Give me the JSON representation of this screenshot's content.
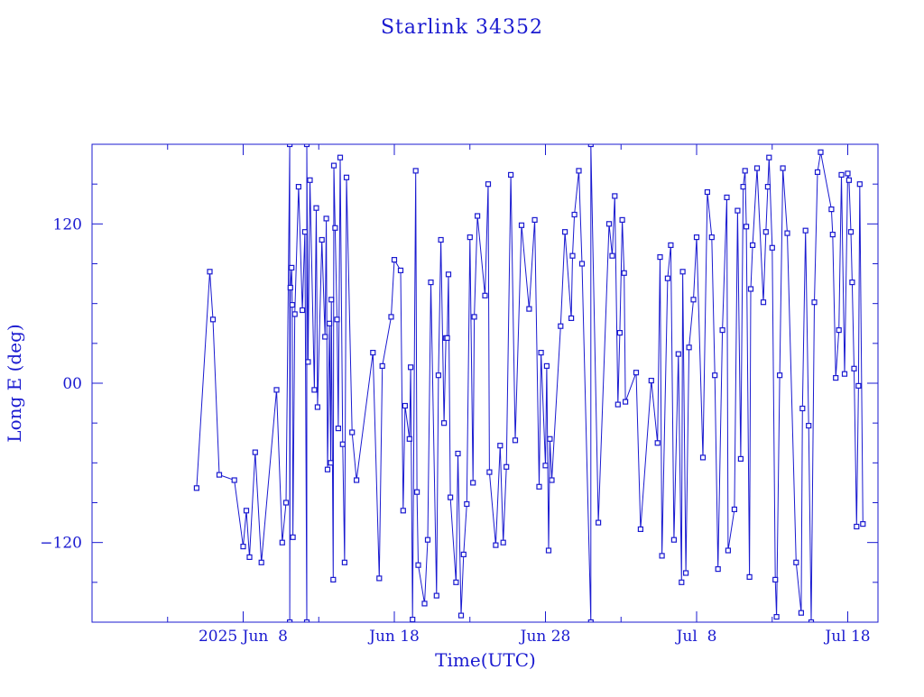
{
  "chart_data": {
    "type": "line",
    "title": "Starlink 34352",
    "xlabel": "Time(UTC)",
    "ylabel": "Long E (deg)",
    "xlim": [
      "2025-05-29T00:00",
      "2025-07-20T00:00"
    ],
    "ylim": [
      -180,
      180
    ],
    "x_tick_labels": [
      {
        "date": "2025-06-08T00:00",
        "label": "2025 Jun  8"
      },
      {
        "date": "2025-06-18T00:00",
        "label": "Jun 18"
      },
      {
        "date": "2025-06-28T00:00",
        "label": "Jun 28"
      },
      {
        "date": "2025-07-08T00:00",
        "label": "Jul  8"
      },
      {
        "date": "2025-07-18T00:00",
        "label": "Jul 18"
      }
    ],
    "y_tick_labels": [
      {
        "value": 120,
        "label": "120"
      },
      {
        "value": 0,
        "label": "00"
      },
      {
        "value": -120,
        "label": "−120"
      }
    ],
    "grid": false,
    "series": [
      {
        "color": "#1a1ad0",
        "marker": "square",
        "points": [
          [
            "2025-06-04T22:00",
            -79
          ],
          [
            "2025-06-05T19:00",
            84
          ],
          [
            "2025-06-06T00:00",
            48
          ],
          [
            "2025-06-06T10:00",
            -69
          ],
          [
            "2025-06-07T10:00",
            -73
          ],
          [
            "2025-06-08T00:00",
            -123
          ],
          [
            "2025-06-08T05:00",
            -96
          ],
          [
            "2025-06-08T10:00",
            -131
          ],
          [
            "2025-06-08T19:00",
            -52
          ],
          [
            "2025-06-09T05:00",
            -135
          ],
          [
            "2025-06-10T05:00",
            -5
          ],
          [
            "2025-06-10T14:00",
            -120
          ],
          [
            "2025-06-10T20:00",
            -90
          ],
          [
            "2025-06-11T02:00",
            180
          ],
          [
            "2025-06-11T02:00",
            -180
          ],
          [
            "2025-06-11T03:00",
            72
          ],
          [
            "2025-06-11T05:00",
            87
          ],
          [
            "2025-06-11T06:00",
            59
          ],
          [
            "2025-06-11T07:00",
            -116
          ],
          [
            "2025-06-11T10:00",
            52
          ],
          [
            "2025-06-11T16:00",
            148
          ],
          [
            "2025-06-11T22:00",
            55
          ],
          [
            "2025-06-12T02:00",
            114
          ],
          [
            "2025-06-12T05:00",
            -180
          ],
          [
            "2025-06-12T05:00",
            180
          ],
          [
            "2025-06-12T07:00",
            16
          ],
          [
            "2025-06-12T10:00",
            153
          ],
          [
            "2025-06-12T17:00",
            -5
          ],
          [
            "2025-06-12T20:00",
            132
          ],
          [
            "2025-06-12T22:00",
            -18
          ],
          [
            "2025-06-13T05:00",
            108
          ],
          [
            "2025-06-13T10:00",
            35
          ],
          [
            "2025-06-13T12:00",
            124
          ],
          [
            "2025-06-13T14:00",
            -65
          ],
          [
            "2025-06-13T17:00",
            45
          ],
          [
            "2025-06-13T19:00",
            -60
          ],
          [
            "2025-06-13T20:00",
            63
          ],
          [
            "2025-06-13T23:00",
            -148
          ],
          [
            "2025-06-14T00:00",
            164
          ],
          [
            "2025-06-14T02:00",
            117
          ],
          [
            "2025-06-14T05:00",
            48
          ],
          [
            "2025-06-14T07:00",
            -34
          ],
          [
            "2025-06-14T10:00",
            170
          ],
          [
            "2025-06-14T14:00",
            -46
          ],
          [
            "2025-06-14T17:00",
            -135
          ],
          [
            "2025-06-14T20:00",
            155
          ],
          [
            "2025-06-15T05:00",
            -37
          ],
          [
            "2025-06-15T12:00",
            -73
          ],
          [
            "2025-06-16T14:00",
            23
          ],
          [
            "2025-06-17T00:00",
            -147
          ],
          [
            "2025-06-17T05:00",
            13
          ],
          [
            "2025-06-17T19:00",
            50
          ],
          [
            "2025-06-18T00:00",
            93
          ],
          [
            "2025-06-18T10:00",
            85
          ],
          [
            "2025-06-18T14:00",
            -96
          ],
          [
            "2025-06-18T17:00",
            -17
          ],
          [
            "2025-06-19T00:00",
            -42
          ],
          [
            "2025-06-19T02:00",
            12
          ],
          [
            "2025-06-19T05:00",
            -178
          ],
          [
            "2025-06-19T10:00",
            160
          ],
          [
            "2025-06-19T12:00",
            -82
          ],
          [
            "2025-06-19T14:00",
            -137
          ],
          [
            "2025-06-20T00:00",
            -166
          ],
          [
            "2025-06-20T05:00",
            -118
          ],
          [
            "2025-06-20T10:00",
            76
          ],
          [
            "2025-06-20T19:00",
            -160
          ],
          [
            "2025-06-20T22:00",
            6
          ],
          [
            "2025-06-21T02:00",
            108
          ],
          [
            "2025-06-21T07:00",
            -30
          ],
          [
            "2025-06-21T10:00",
            34
          ],
          [
            "2025-06-21T12:00",
            34
          ],
          [
            "2025-06-21T14:00",
            82
          ],
          [
            "2025-06-21T17:00",
            -86
          ],
          [
            "2025-06-22T02:00",
            -150
          ],
          [
            "2025-06-22T05:00",
            -53
          ],
          [
            "2025-06-22T10:00",
            -175
          ],
          [
            "2025-06-22T14:00",
            -129
          ],
          [
            "2025-06-22T19:00",
            -91
          ],
          [
            "2025-06-23T00:00",
            110
          ],
          [
            "2025-06-23T05:00",
            -75
          ],
          [
            "2025-06-23T07:00",
            50
          ],
          [
            "2025-06-23T12:00",
            126
          ],
          [
            "2025-06-24T00:00",
            66
          ],
          [
            "2025-06-24T05:00",
            150
          ],
          [
            "2025-06-24T07:00",
            -67
          ],
          [
            "2025-06-24T17:00",
            -122
          ],
          [
            "2025-06-25T00:00",
            -47
          ],
          [
            "2025-06-25T05:00",
            -120
          ],
          [
            "2025-06-25T10:00",
            -63
          ],
          [
            "2025-06-25T17:00",
            157
          ],
          [
            "2025-06-26T00:00",
            -43
          ],
          [
            "2025-06-26T10:00",
            119
          ],
          [
            "2025-06-26T22:00",
            56
          ],
          [
            "2025-06-27T07:00",
            123
          ],
          [
            "2025-06-27T14:00",
            -78
          ],
          [
            "2025-06-27T17:00",
            23
          ],
          [
            "2025-06-28T00:00",
            -62
          ],
          [
            "2025-06-28T02:00",
            13
          ],
          [
            "2025-06-28T05:00",
            -126
          ],
          [
            "2025-06-28T07:00",
            -42
          ],
          [
            "2025-06-28T10:00",
            -73
          ],
          [
            "2025-06-29T00:00",
            43
          ],
          [
            "2025-06-29T07:00",
            114
          ],
          [
            "2025-06-29T17:00",
            49
          ],
          [
            "2025-06-29T19:00",
            96
          ],
          [
            "2025-06-29T22:00",
            127
          ],
          [
            "2025-06-30T05:00",
            160
          ],
          [
            "2025-06-30T10:00",
            90
          ],
          [
            "2025-07-01T00:00",
            -180
          ],
          [
            "2025-07-01T00:00",
            180
          ],
          [
            "2025-07-01T12:00",
            -105
          ],
          [
            "2025-07-02T05:00",
            120
          ],
          [
            "2025-07-02T10:00",
            96
          ],
          [
            "2025-07-02T14:00",
            141
          ],
          [
            "2025-07-02T19:00",
            -16
          ],
          [
            "2025-07-02T22:00",
            38
          ],
          [
            "2025-07-03T02:00",
            123
          ],
          [
            "2025-07-03T05:00",
            83
          ],
          [
            "2025-07-03T07:00",
            -14
          ],
          [
            "2025-07-04T00:00",
            8
          ],
          [
            "2025-07-04T07:00",
            -110
          ],
          [
            "2025-07-05T00:00",
            2
          ],
          [
            "2025-07-05T10:00",
            -45
          ],
          [
            "2025-07-05T14:00",
            95
          ],
          [
            "2025-07-05T17:00",
            -130
          ],
          [
            "2025-07-06T02:00",
            79
          ],
          [
            "2025-07-06T07:00",
            104
          ],
          [
            "2025-07-06T12:00",
            -118
          ],
          [
            "2025-07-06T19:00",
            22
          ],
          [
            "2025-07-07T00:00",
            -150
          ],
          [
            "2025-07-07T02:00",
            84
          ],
          [
            "2025-07-07T07:00",
            -143
          ],
          [
            "2025-07-07T12:00",
            27
          ],
          [
            "2025-07-07T19:00",
            63
          ],
          [
            "2025-07-08T00:00",
            110
          ],
          [
            "2025-07-08T10:00",
            -56
          ],
          [
            "2025-07-08T17:00",
            144
          ],
          [
            "2025-07-09T00:00",
            110
          ],
          [
            "2025-07-09T05:00",
            6
          ],
          [
            "2025-07-09T10:00",
            -140
          ],
          [
            "2025-07-09T17:00",
            40
          ],
          [
            "2025-07-10T00:00",
            140
          ],
          [
            "2025-07-10T02:00",
            -126
          ],
          [
            "2025-07-10T12:00",
            -95
          ],
          [
            "2025-07-10T17:00",
            130
          ],
          [
            "2025-07-10T22:00",
            -57
          ],
          [
            "2025-07-11T02:00",
            148
          ],
          [
            "2025-07-11T05:00",
            160
          ],
          [
            "2025-07-11T07:00",
            118
          ],
          [
            "2025-07-11T12:00",
            -146
          ],
          [
            "2025-07-11T14:00",
            71
          ],
          [
            "2025-07-11T17:00",
            104
          ],
          [
            "2025-07-12T00:00",
            162
          ],
          [
            "2025-07-12T10:00",
            61
          ],
          [
            "2025-07-12T14:00",
            114
          ],
          [
            "2025-07-12T17:00",
            148
          ],
          [
            "2025-07-12T19:00",
            170
          ],
          [
            "2025-07-13T00:00",
            102
          ],
          [
            "2025-07-13T05:00",
            -148
          ],
          [
            "2025-07-13T07:00",
            -176
          ],
          [
            "2025-07-13T12:00",
            6
          ],
          [
            "2025-07-13T17:00",
            162
          ],
          [
            "2025-07-14T00:00",
            113
          ],
          [
            "2025-07-14T14:00",
            -135
          ],
          [
            "2025-07-14T22:00",
            -173
          ],
          [
            "2025-07-15T00:00",
            -19
          ],
          [
            "2025-07-15T05:00",
            115
          ],
          [
            "2025-07-15T10:00",
            -32
          ],
          [
            "2025-07-15T14:00",
            -180
          ],
          [
            "2025-07-15T19:00",
            61
          ],
          [
            "2025-07-16T00:00",
            159
          ],
          [
            "2025-07-16T05:00",
            174
          ],
          [
            "2025-07-16T22:00",
            131
          ],
          [
            "2025-07-17T00:00",
            112
          ],
          [
            "2025-07-17T05:00",
            4
          ],
          [
            "2025-07-17T10:00",
            40
          ],
          [
            "2025-07-17T14:00",
            157
          ],
          [
            "2025-07-17T19:00",
            7
          ],
          [
            "2025-07-18T00:00",
            158
          ],
          [
            "2025-07-18T02:00",
            153
          ],
          [
            "2025-07-18T05:00",
            114
          ],
          [
            "2025-07-18T07:00",
            76
          ],
          [
            "2025-07-18T10:00",
            11
          ],
          [
            "2025-07-18T14:00",
            -108
          ],
          [
            "2025-07-18T17:00",
            -2
          ],
          [
            "2025-07-18T19:00",
            150
          ],
          [
            "2025-07-19T00:00",
            -106
          ]
        ]
      }
    ]
  }
}
